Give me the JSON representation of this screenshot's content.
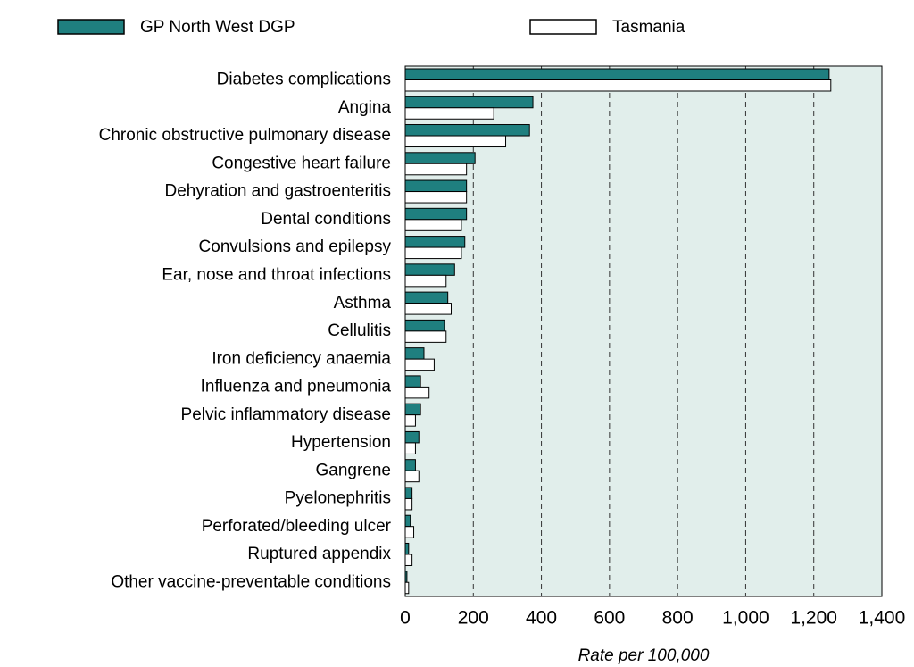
{
  "chart_data": {
    "type": "bar",
    "orientation": "horizontal",
    "x_label": "Rate per 100,000",
    "categories": [
      "Diabetes complications",
      "Angina",
      "Chronic obstructive pulmonary disease",
      "Congestive heart failure",
      "Dehyration and gastroenteritis",
      "Dental conditions",
      "Convulsions and epilepsy",
      "Ear, nose and throat infections",
      "Asthma",
      "Cellulitis",
      "Iron deficiency anaemia",
      "Influenza and pneumonia",
      "Pelvic inflammatory disease",
      "Hypertension",
      "Gangrene",
      "Pyelonephritis",
      "Perforated/bleeding ulcer",
      "Ruptured appendix",
      "Other vaccine-preventable conditions"
    ],
    "series": [
      {
        "name": "GP North West DGP",
        "color": "#1f7f7f",
        "values": [
          1245,
          375,
          365,
          205,
          180,
          180,
          175,
          145,
          125,
          115,
          55,
          45,
          45,
          40,
          30,
          20,
          15,
          10,
          5
        ]
      },
      {
        "name": "Tasmania",
        "color": "#ffffff",
        "values": [
          1250,
          260,
          295,
          180,
          180,
          165,
          165,
          120,
          135,
          120,
          85,
          70,
          30,
          30,
          40,
          20,
          25,
          20,
          10
        ]
      }
    ],
    "xlim": [
      0,
      1400
    ],
    "xticks": [
      0,
      200,
      400,
      600,
      800,
      {
        "value": 1000,
        "label": "1,000"
      },
      {
        "value": 1200,
        "label": "1,200"
      },
      {
        "value": 1400,
        "label": "1,400"
      }
    ],
    "grid": true
  }
}
